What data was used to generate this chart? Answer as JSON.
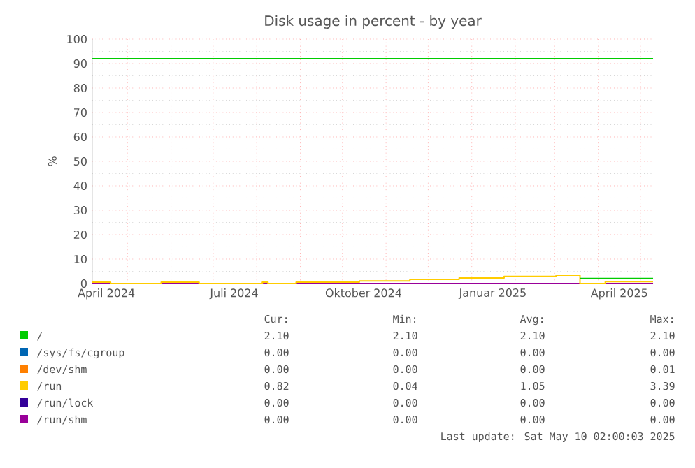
{
  "chart_data": {
    "type": "step",
    "title": "Disk usage in percent - by year",
    "ylabel": "%",
    "x": [
      "2024-04-06",
      "2025-05-10"
    ],
    "xlim": [
      "2024-04-06",
      "2025-05-10"
    ],
    "xticks": [
      {
        "value": "2024-04-16",
        "label": "April 2024"
      },
      {
        "value": "2024-07-16",
        "label": "Juli 2024"
      },
      {
        "value": "2024-10-16",
        "label": "Oktober 2024"
      },
      {
        "value": "2025-01-16",
        "label": "Januar 2025"
      },
      {
        "value": "2025-04-16",
        "label": "April 2025"
      },
      {
        "value": "2024-05-01",
        "label": null
      },
      {
        "value": "2024-06-01",
        "label": null
      },
      {
        "value": "2024-07-01",
        "label": null
      },
      {
        "value": "2024-08-01",
        "label": null
      },
      {
        "value": "2024-09-01",
        "label": null
      },
      {
        "value": "2024-10-01",
        "label": null
      },
      {
        "value": "2024-11-01",
        "label": null
      },
      {
        "value": "2024-12-01",
        "label": null
      },
      {
        "value": "2025-01-01",
        "label": null
      },
      {
        "value": "2025-02-01",
        "label": null
      },
      {
        "value": "2025-03-01",
        "label": null
      },
      {
        "value": "2025-04-01",
        "label": null
      },
      {
        "value": "2025-05-01",
        "label": null
      }
    ],
    "ylim": [
      0,
      100
    ],
    "yticks": [
      0,
      10,
      20,
      30,
      40,
      50,
      60,
      70,
      80,
      90,
      100
    ],
    "grid": true,
    "legend": "bottom",
    "series": [
      {
        "name": "/sys/fs/cgroup",
        "color": "#0066b3",
        "values": [
          null,
          null
        ]
      },
      {
        "name": "/dev/shm",
        "color": "#ff8000",
        "values": [
          null,
          null
        ]
      },
      {
        "name": "/run/lock",
        "color": "#330099",
        "values": [
          null,
          null
        ]
      },
      {
        "name": "/run/shm",
        "color": "#990099",
        "values": [
          0,
          0
        ]
      },
      {
        "name": "/run",
        "color": "#ffcc00",
        "x": [
          "2024-04-06",
          "2024-04-19",
          "2024-05-25",
          "2024-06-21",
          "2024-08-05",
          "2024-08-09",
          "2024-08-29",
          "2024-10-13",
          "2024-11-18",
          "2024-12-23",
          "2025-01-24",
          "2025-03-02",
          "2025-03-19",
          "2025-04-06",
          "2025-05-10"
        ],
        "values": [
          0.6,
          0,
          0.6,
          0,
          0.6,
          0,
          0.6,
          1.1,
          1.7,
          2.3,
          2.9,
          3.4,
          0,
          0.8,
          0.8
        ]
      },
      {
        "name": "/",
        "color": "#00cc00",
        "x": [
          "2025-03-19",
          "2025-05-10"
        ],
        "values": [
          2.1,
          2.1
        ]
      }
    ],
    "ref_lines": [
      {
        "axis": "y",
        "value": 92,
        "color": "#00cc00"
      }
    ],
    "annotations": [
      "Cur:",
      "Min:",
      "Avg:",
      "Max:",
      "2.10",
      "2.10",
      "2.10",
      "2.10",
      "0.00",
      "0.00",
      "0.00",
      "0.00",
      "0.00",
      "0.00",
      "0.00",
      "0.01",
      "0.82",
      "0.04",
      "1.05",
      "3.39",
      "0.00",
      "0.00",
      "0.00",
      "0.00",
      "0.00",
      "0.00",
      "0.00",
      "0.00",
      "Last update: Sat May 10 02:00:03 2025"
    ]
  }
}
